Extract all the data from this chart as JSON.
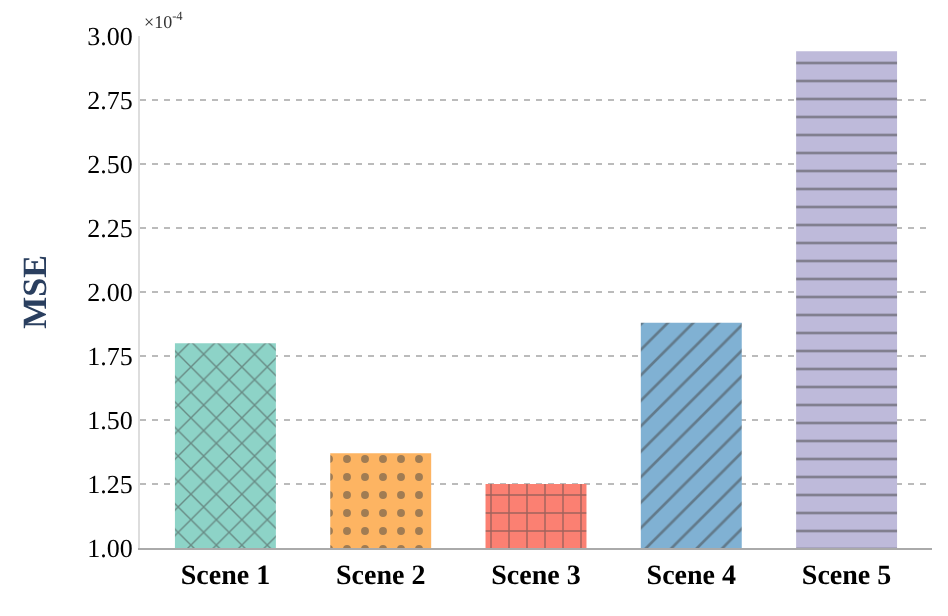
{
  "chart_data": {
    "type": "bar",
    "ylabel": "MSE",
    "annotations": [
      "×10$^{-4}$"
    ],
    "categories": [
      "Scene 1",
      "Scene 2",
      "Scene 3",
      "Scene 4",
      "Scene 5"
    ],
    "values": [
      1.8,
      1.37,
      1.25,
      1.88,
      2.94
    ],
    "colors": [
      "#8dd3c7",
      "#fdb462",
      "#fb8072",
      "#80b1d3",
      "#bebada"
    ],
    "ylim": [
      1.0,
      3.0
    ],
    "yticks": [
      {
        "value": 1.0,
        "label": "1.00"
      },
      {
        "value": 1.25,
        "label": "1.25"
      },
      {
        "value": 1.5,
        "label": "1.50"
      },
      {
        "value": 1.75,
        "label": "1.75"
      },
      {
        "value": 2.0,
        "label": "2.00"
      },
      {
        "value": 2.25,
        "label": "2.25"
      },
      {
        "value": 2.5,
        "label": "2.50"
      },
      {
        "value": 2.75,
        "label": "2.75"
      },
      {
        "value": 3.0,
        "label": "3.00"
      }
    ],
    "grid": "y",
    "legend": false
  }
}
